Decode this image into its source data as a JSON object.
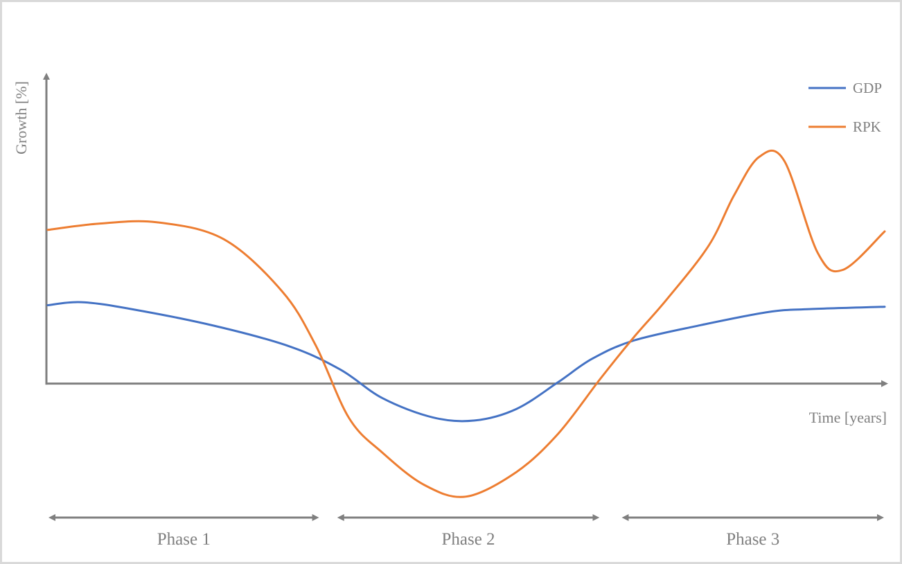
{
  "chart_data": {
    "type": "line",
    "ylabel": "Growth [%]",
    "xlabel": "Time [years]",
    "ylim": [
      -15,
      40
    ],
    "xlim": [
      0,
      100
    ],
    "grid": false,
    "legend": "top-right",
    "series": [
      {
        "name": "GDP",
        "color": "#4472c4",
        "x": [
          0,
          4,
          10,
          20,
          29,
          35,
          40,
          46,
          51,
          56,
          61,
          65,
          70,
          78,
          86,
          91,
          100
        ],
        "y": [
          10.2,
          10.6,
          9.7,
          7.5,
          4.8,
          1.8,
          -1.9,
          -4.4,
          -4.8,
          -3.3,
          0.2,
          3.2,
          5.6,
          7.6,
          9.3,
          9.7,
          10.0
        ]
      },
      {
        "name": "RPK",
        "color": "#ed7d31",
        "x": [
          0,
          6,
          13,
          21,
          28,
          32,
          36,
          40,
          45,
          50,
          56,
          61,
          66,
          70,
          74,
          79,
          82,
          85,
          88,
          92,
          95,
          100
        ],
        "y": [
          20.0,
          20.8,
          21.0,
          18.8,
          12.0,
          5.0,
          -4.5,
          -9.0,
          -13.2,
          -14.7,
          -11.5,
          -6.5,
          0.6,
          6.0,
          11.0,
          18.0,
          24.5,
          29.5,
          29.0,
          17.0,
          14.8,
          19.8
        ]
      }
    ],
    "phases": [
      {
        "label": "Phase 1",
        "x": [
          0,
          32.5
        ]
      },
      {
        "label": "Phase 2",
        "x": [
          34.5,
          66
        ]
      },
      {
        "label": "Phase 3",
        "x": [
          68.5,
          100
        ]
      }
    ]
  }
}
